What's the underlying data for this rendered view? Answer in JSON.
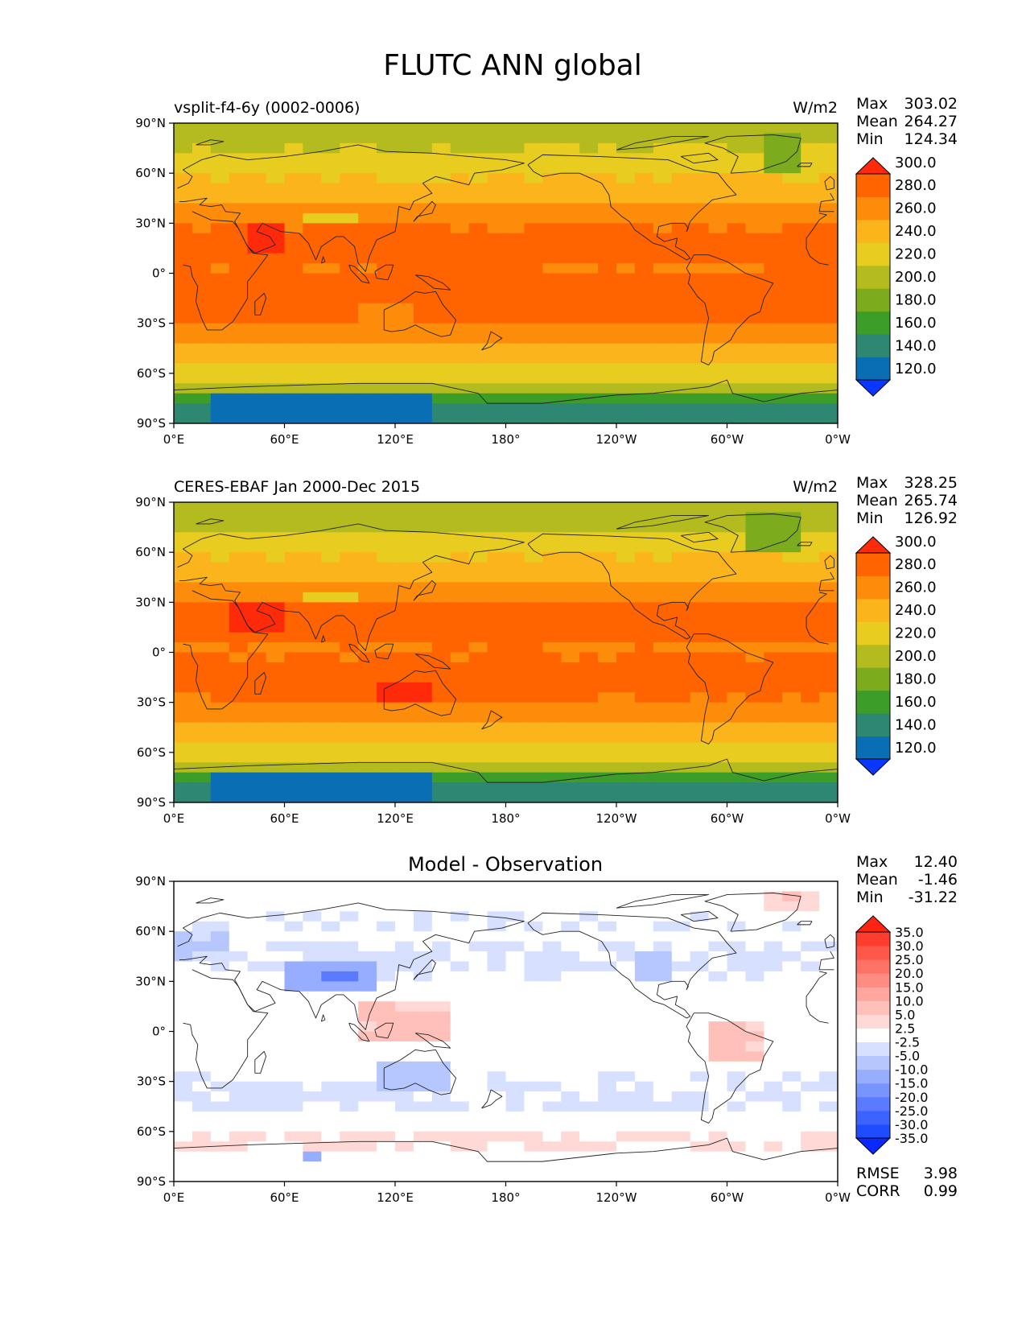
{
  "figure_title": "FLUTC ANN global",
  "chart_data": [
    {
      "type": "heatmap",
      "panel": "model",
      "title": "vsplit-f4-6y (0002-0006)",
      "units": "W/m2",
      "stats": {
        "max_label": "Max",
        "max": "303.02",
        "mean_label": "Mean",
        "mean": "264.27",
        "min_label": "Min",
        "min": "124.34"
      },
      "x_ticks": [
        "0°E",
        "60°E",
        "120°E",
        "180°",
        "120°W",
        "60°W",
        "0°W"
      ],
      "y_ticks": [
        "90°N",
        "60°N",
        "30°N",
        "0°",
        "30°S",
        "60°S",
        "90°S"
      ],
      "xlim": [
        0,
        360
      ],
      "ylim": [
        -90,
        90
      ],
      "zonal_profile": [
        {
          "lat": 87,
          "value": 205
        },
        {
          "lat": 81,
          "value": 215
        },
        {
          "lat": 75,
          "value": 220
        },
        {
          "lat": 69,
          "value": 226
        },
        {
          "lat": 63,
          "value": 232
        },
        {
          "lat": 57,
          "value": 240
        },
        {
          "lat": 51,
          "value": 247
        },
        {
          "lat": 45,
          "value": 254
        },
        {
          "lat": 39,
          "value": 262
        },
        {
          "lat": 33,
          "value": 272
        },
        {
          "lat": 27,
          "value": 281
        },
        {
          "lat": 21,
          "value": 284
        },
        {
          "lat": 15,
          "value": 285
        },
        {
          "lat": 9,
          "value": 283
        },
        {
          "lat": 3,
          "value": 281
        },
        {
          "lat": -3,
          "value": 282
        },
        {
          "lat": -9,
          "value": 284
        },
        {
          "lat": -15,
          "value": 285
        },
        {
          "lat": -21,
          "value": 285
        },
        {
          "lat": -27,
          "value": 282
        },
        {
          "lat": -33,
          "value": 274
        },
        {
          "lat": -39,
          "value": 264
        },
        {
          "lat": -45,
          "value": 254
        },
        {
          "lat": -51,
          "value": 245
        },
        {
          "lat": -57,
          "value": 236
        },
        {
          "lat": -63,
          "value": 228
        },
        {
          "lat": -69,
          "value": 210
        },
        {
          "lat": -75,
          "value": 170
        },
        {
          "lat": -81,
          "value": 150
        },
        {
          "lat": -87,
          "value": 158
        }
      ],
      "features": [
        {
          "lon0": 320,
          "lon1": 340,
          "lat0": 60,
          "lat1": 84,
          "value": 190
        },
        {
          "lon0": 40,
          "lon1": 58,
          "lat0": 14,
          "lat1": 30,
          "value": 302
        },
        {
          "lon0": 20,
          "lon1": 140,
          "lat0": -90,
          "lat1": -70,
          "value": 135
        },
        {
          "lon0": 100,
          "lon1": 125,
          "lat0": -28,
          "lat1": -18,
          "value": 278
        },
        {
          "lon0": 75,
          "lon1": 100,
          "lat0": 28,
          "lat1": 38,
          "value": 235
        }
      ],
      "colorbar": {
        "levels": [
          "120.0",
          "140.0",
          "160.0",
          "180.0",
          "200.0",
          "220.0",
          "240.0",
          "260.0",
          "280.0",
          "300.0"
        ],
        "colors": [
          "#0a37ff",
          "#0a6eb4",
          "#2d8771",
          "#3c9d28",
          "#7dab1e",
          "#b4bb1e",
          "#e8cc20",
          "#fcb41c",
          "#fd8c0a",
          "#ff6400",
          "#ff2a0a"
        ]
      }
    },
    {
      "type": "heatmap",
      "panel": "observation",
      "title": "CERES-EBAF Jan 2000-Dec 2015",
      "units": "W/m2",
      "stats": {
        "max_label": "Max",
        "max": "328.25",
        "mean_label": "Mean",
        "mean": "265.74",
        "min_label": "Min",
        "min": "126.92"
      },
      "x_ticks": [
        "0°E",
        "60°E",
        "120°E",
        "180°",
        "120°W",
        "60°W",
        "0°W"
      ],
      "y_ticks": [
        "90°N",
        "60°N",
        "30°N",
        "0°",
        "30°S",
        "60°S",
        "90°S"
      ],
      "xlim": [
        0,
        360
      ],
      "ylim": [
        -90,
        90
      ],
      "zonal_profile": [
        {
          "lat": 87,
          "value": 205
        },
        {
          "lat": 81,
          "value": 212
        },
        {
          "lat": 75,
          "value": 218
        },
        {
          "lat": 69,
          "value": 224
        },
        {
          "lat": 63,
          "value": 231
        },
        {
          "lat": 57,
          "value": 240
        },
        {
          "lat": 51,
          "value": 248
        },
        {
          "lat": 45,
          "value": 256
        },
        {
          "lat": 39,
          "value": 264
        },
        {
          "lat": 33,
          "value": 273
        },
        {
          "lat": 27,
          "value": 283
        },
        {
          "lat": 21,
          "value": 285
        },
        {
          "lat": 15,
          "value": 285
        },
        {
          "lat": 9,
          "value": 282
        },
        {
          "lat": 3,
          "value": 279
        },
        {
          "lat": -3,
          "value": 281
        },
        {
          "lat": -9,
          "value": 283
        },
        {
          "lat": -15,
          "value": 285
        },
        {
          "lat": -21,
          "value": 285
        },
        {
          "lat": -27,
          "value": 281
        },
        {
          "lat": -33,
          "value": 272
        },
        {
          "lat": -39,
          "value": 262
        },
        {
          "lat": -45,
          "value": 253
        },
        {
          "lat": -51,
          "value": 243
        },
        {
          "lat": -57,
          "value": 234
        },
        {
          "lat": -63,
          "value": 226
        },
        {
          "lat": -69,
          "value": 205
        },
        {
          "lat": -75,
          "value": 168
        },
        {
          "lat": -81,
          "value": 148
        },
        {
          "lat": -87,
          "value": 155
        }
      ],
      "features": [
        {
          "lon0": 315,
          "lon1": 340,
          "lat0": 60,
          "lat1": 84,
          "value": 190
        },
        {
          "lon0": 30,
          "lon1": 60,
          "lat0": 14,
          "lat1": 32,
          "value": 305
        },
        {
          "lon0": 115,
          "lon1": 135,
          "lat0": -30,
          "lat1": -18,
          "value": 304
        },
        {
          "lon0": 20,
          "lon1": 140,
          "lat0": -90,
          "lat1": -70,
          "value": 135
        },
        {
          "lon0": 75,
          "lon1": 100,
          "lat0": 28,
          "lat1": 38,
          "value": 238
        }
      ],
      "colorbar": {
        "levels": [
          "120.0",
          "140.0",
          "160.0",
          "180.0",
          "200.0",
          "220.0",
          "240.0",
          "260.0",
          "280.0",
          "300.0"
        ],
        "colors": [
          "#0a37ff",
          "#0a6eb4",
          "#2d8771",
          "#3c9d28",
          "#7dab1e",
          "#b4bb1e",
          "#e8cc20",
          "#fcb41c",
          "#fd8c0a",
          "#ff6400",
          "#ff2a0a"
        ]
      }
    },
    {
      "type": "heatmap",
      "panel": "difference",
      "title": "Model - Observation",
      "units": "",
      "stats": {
        "max_label": "Max",
        "max": "12.40",
        "mean_label": "Mean",
        "mean": "-1.46",
        "min_label": "Min",
        "min": "-31.22"
      },
      "metrics": {
        "rmse_label": "RMSE",
        "rmse": "3.98",
        "corr_label": "CORR",
        "corr": "0.99"
      },
      "x_ticks": [
        "0°E",
        "60°E",
        "120°E",
        "180°",
        "120°W",
        "60°W",
        "0°W"
      ],
      "y_ticks": [
        "90°N",
        "60°N",
        "30°N",
        "0°",
        "30°S",
        "60°S",
        "90°S"
      ],
      "xlim": [
        0,
        360
      ],
      "ylim": [
        -90,
        90
      ],
      "zonal_profile": [
        {
          "lat": 87,
          "value": 0
        },
        {
          "lat": 81,
          "value": 0
        },
        {
          "lat": 75,
          "value": -1
        },
        {
          "lat": 69,
          "value": -2
        },
        {
          "lat": 63,
          "value": -2
        },
        {
          "lat": 57,
          "value": -1
        },
        {
          "lat": 51,
          "value": -3
        },
        {
          "lat": 45,
          "value": -3
        },
        {
          "lat": 39,
          "value": -3
        },
        {
          "lat": 33,
          "value": -2
        },
        {
          "lat": 27,
          "value": -1
        },
        {
          "lat": 21,
          "value": -1
        },
        {
          "lat": 15,
          "value": 0
        },
        {
          "lat": 9,
          "value": 0
        },
        {
          "lat": 3,
          "value": 1
        },
        {
          "lat": -3,
          "value": 0
        },
        {
          "lat": -9,
          "value": 0
        },
        {
          "lat": -15,
          "value": 0
        },
        {
          "lat": -21,
          "value": -1
        },
        {
          "lat": -27,
          "value": -2
        },
        {
          "lat": -33,
          "value": -3
        },
        {
          "lat": -39,
          "value": -3
        },
        {
          "lat": -45,
          "value": -3
        },
        {
          "lat": -51,
          "value": -1
        },
        {
          "lat": -57,
          "value": 0
        },
        {
          "lat": -63,
          "value": 3
        },
        {
          "lat": -69,
          "value": 3
        },
        {
          "lat": -75,
          "value": 0
        },
        {
          "lat": -81,
          "value": -1
        },
        {
          "lat": -87,
          "value": 0
        }
      ],
      "features": [
        {
          "lon0": 60,
          "lon1": 110,
          "lat0": 25,
          "lat1": 42,
          "value": -12
        },
        {
          "lon0": 80,
          "lon1": 95,
          "lat0": 28,
          "lat1": 34,
          "value": -22
        },
        {
          "lon0": 105,
          "lon1": 150,
          "lat0": -5,
          "lat1": 15,
          "value": 6
        },
        {
          "lon0": 290,
          "lon1": 320,
          "lat0": -15,
          "lat1": 5,
          "value": 6
        },
        {
          "lon0": 115,
          "lon1": 150,
          "lat0": -35,
          "lat1": -18,
          "value": -7
        },
        {
          "lon0": 320,
          "lon1": 345,
          "lat0": 70,
          "lat1": 82,
          "value": 4
        },
        {
          "lon0": 70,
          "lon1": 80,
          "lat0": -78,
          "lat1": -72,
          "value": -12
        },
        {
          "lon0": 0,
          "lon1": 30,
          "lat0": 45,
          "lat1": 60,
          "value": -6
        },
        {
          "lon0": 250,
          "lon1": 270,
          "lat0": 30,
          "lat1": 45,
          "value": -7
        }
      ],
      "colorbar": {
        "levels": [
          "-35.0",
          "-30.0",
          "-25.0",
          "-20.0",
          "-15.0",
          "-10.0",
          "-5.0",
          "-2.5",
          "2.5",
          "5.0",
          "10.0",
          "15.0",
          "20.0",
          "25.0",
          "30.0",
          "35.0"
        ],
        "colors": [
          "#0a28ff",
          "#1f4cff",
          "#3c62ff",
          "#5a7bff",
          "#7894ff",
          "#97adff",
          "#b6c6ff",
          "#d7e0ff",
          "#ffffff",
          "#ffd9d6",
          "#ffc0ba",
          "#ffa69e",
          "#ff8c82",
          "#ff7266",
          "#ff574a",
          "#ff3d2e",
          "#ff2311"
        ]
      }
    }
  ]
}
